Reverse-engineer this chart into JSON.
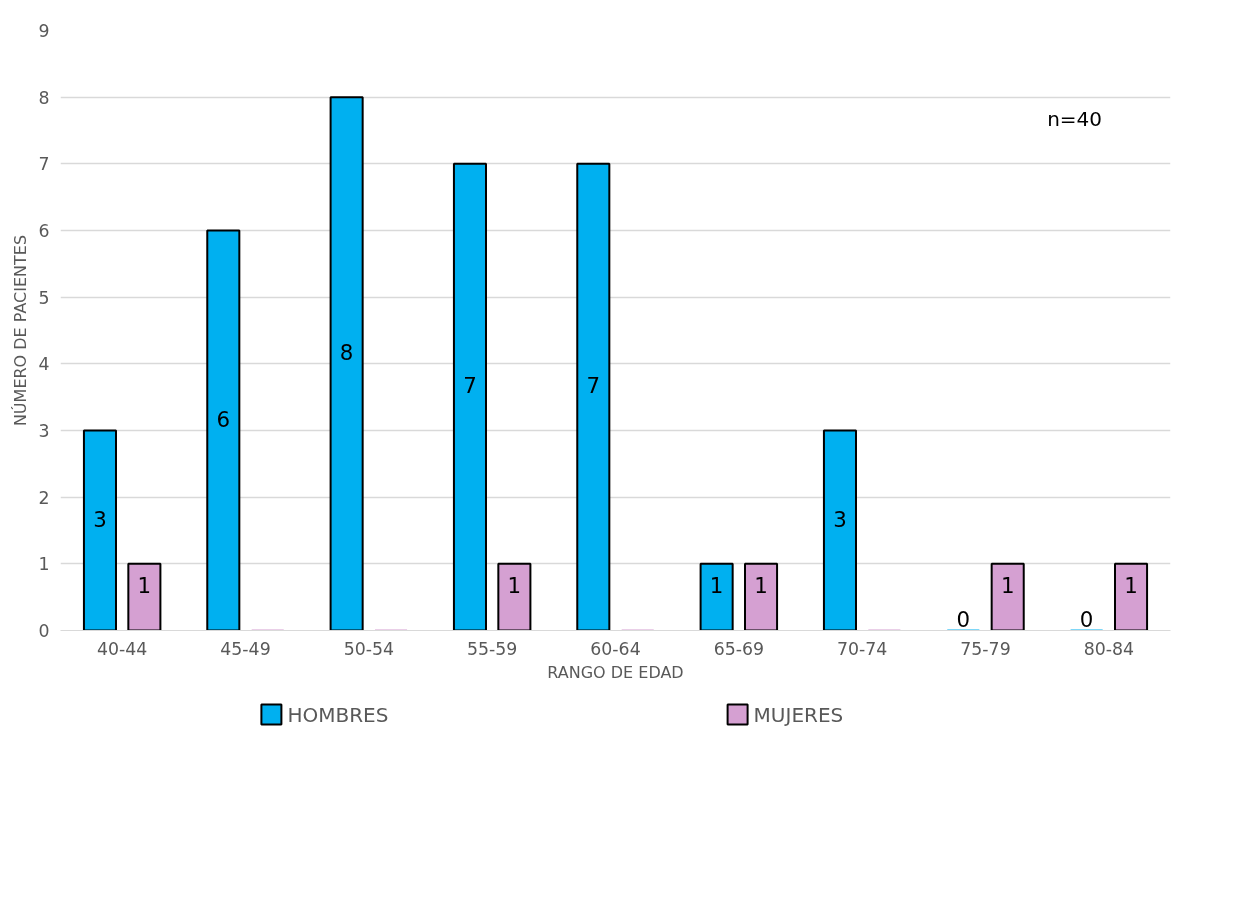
{
  "chart_data": {
    "type": "bar",
    "xlabel": "RANGO DE EDAD",
    "ylabel": "NÚMERO DE PACIENTES",
    "categories": [
      "40-44",
      "45-49",
      "50-54",
      "55-59",
      "60-64",
      "65-69",
      "70-74",
      "75-79",
      "80-84"
    ],
    "series": [
      {
        "name": "HOMBRES",
        "color": "#00b0f0",
        "values": [
          3,
          6,
          8,
          7,
          7,
          1,
          3,
          0,
          0
        ],
        "value_labels": [
          "3",
          "6",
          "8",
          "7",
          "7",
          "1",
          "3",
          "0",
          "0"
        ]
      },
      {
        "name": "MUJERES",
        "color": "#d5a0d2",
        "values": [
          1,
          0,
          0,
          1,
          0,
          1,
          0,
          1,
          1
        ],
        "value_labels": [
          "1",
          null,
          null,
          "1",
          null,
          "1",
          null,
          "1",
          "1"
        ]
      }
    ],
    "ylim": [
      0,
      9
    ],
    "yticks": [
      0,
      1,
      2,
      3,
      4,
      5,
      6,
      7,
      8,
      9
    ],
    "grid": "y",
    "legend": "bottom",
    "annotations": [
      "n=40"
    ]
  }
}
